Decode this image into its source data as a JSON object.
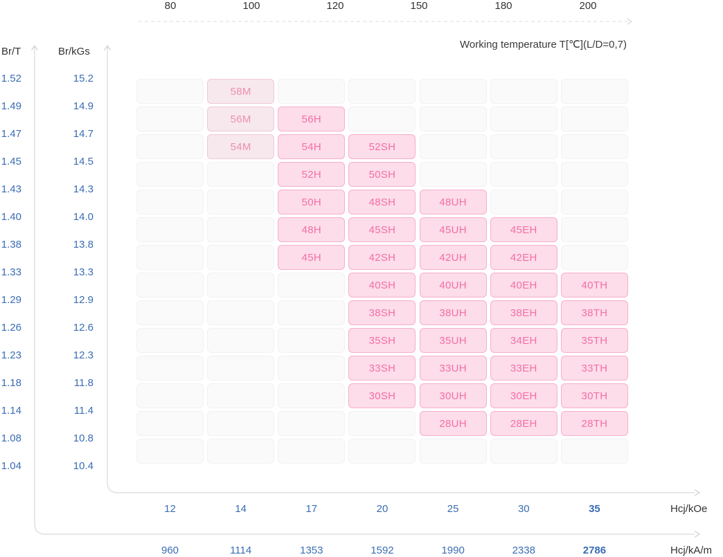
{
  "colors": {
    "accent_blue": "#3a6cb4",
    "text_dark": "#333333",
    "axis_line_gray": "#d9d9d9",
    "empty_cell_bg": "#fafafa",
    "empty_cell_border": "#f1f1f1",
    "grade_cell_bg": "#fcdde9",
    "grade_cell_border": "#f8aecd",
    "grade_cell_text": "#f46ea6",
    "m_grade_cell_bg": "#f7e8ed",
    "m_grade_cell_border": "#efc9d6",
    "m_grade_cell_text": "#ec8fb0"
  },
  "ui": {
    "title": "Working temperature T[℃](L/D=0,7)",
    "temp_labels": [
      "80",
      "100",
      "120",
      "150",
      "180",
      "200"
    ],
    "y_axis": {
      "left_title": "Br/T",
      "right_title": "Br/kGs",
      "br_t": [
        "1.52",
        "1.49",
        "1.47",
        "1.45",
        "1.43",
        "1.40",
        "1.38",
        "1.33",
        "1.29",
        "1.26",
        "1.23",
        "1.18",
        "1.14",
        "1.08",
        "1.04"
      ],
      "br_kgs": [
        "15.2",
        "14.9",
        "14.7",
        "14.5",
        "14.3",
        "14.0",
        "13.8",
        "13.3",
        "12.9",
        "12.6",
        "12.3",
        "11.8",
        "11.4",
        "10.8",
        "10.4"
      ]
    },
    "x_koe": {
      "label": "Hcj/kOe",
      "values": [
        "12",
        "14",
        "17",
        "20",
        "25",
        "30",
        "35"
      ],
      "bold": [
        "35"
      ]
    },
    "x_kam": {
      "label": "Hcj/kA/m",
      "values": [
        "960",
        "1114",
        "1353",
        "1592",
        "1990",
        "2338",
        "2786"
      ],
      "bold": [
        "2786"
      ]
    }
  },
  "chart_data": {
    "type": "heatmap",
    "title": "Working temperature T[℃](L/D=0,7)",
    "top_axis": {
      "label": "Working temperature T[℃](L/D=0,7)",
      "ticks_celsius": [
        80,
        100,
        120,
        150,
        180,
        200
      ]
    },
    "y_axis": {
      "primary_label": "Br/T",
      "primary_ticks": [
        1.52,
        1.49,
        1.47,
        1.45,
        1.43,
        1.4,
        1.38,
        1.33,
        1.29,
        1.26,
        1.23,
        1.18,
        1.14,
        1.08,
        1.04
      ],
      "secondary_label": "Br/kGs",
      "secondary_ticks": [
        15.2,
        14.9,
        14.7,
        14.5,
        14.3,
        14.0,
        13.8,
        13.3,
        12.9,
        12.6,
        12.3,
        11.8,
        11.4,
        10.8,
        10.4
      ]
    },
    "x_axis": {
      "primary_label": "Hcj/kOe",
      "primary_ticks": [
        12,
        14,
        17,
        20,
        25,
        30,
        35
      ],
      "secondary_label": "Hcj/kA/m",
      "secondary_ticks": [
        960,
        1114,
        1353,
        1592,
        1990,
        2338,
        2786
      ]
    },
    "grid_rows": [
      [
        "",
        "58M",
        "",
        "",
        "",
        "",
        ""
      ],
      [
        "",
        "56M",
        "56H",
        "",
        "",
        "",
        ""
      ],
      [
        "",
        "54M",
        "54H",
        "52SH",
        "",
        "",
        ""
      ],
      [
        "",
        "",
        "52H",
        "50SH",
        "",
        "",
        ""
      ],
      [
        "",
        "",
        "50H",
        "48SH",
        "48UH",
        "",
        ""
      ],
      [
        "",
        "",
        "48H",
        "45SH",
        "45UH",
        "45EH",
        ""
      ],
      [
        "",
        "",
        "45H",
        "42SH",
        "42UH",
        "42EH",
        ""
      ],
      [
        "",
        "",
        "",
        "40SH",
        "40UH",
        "40EH",
        "40TH"
      ],
      [
        "",
        "",
        "",
        "38SH",
        "38UH",
        "38EH",
        "38TH"
      ],
      [
        "",
        "",
        "",
        "35SH",
        "35UH",
        "34EH",
        "35TH"
      ],
      [
        "",
        "",
        "",
        "33SH",
        "33UH",
        "33EH",
        "33TH"
      ],
      [
        "",
        "",
        "",
        "30SH",
        "30UH",
        "30EH",
        "30TH"
      ],
      [
        "",
        "",
        "",
        "",
        "28UH",
        "28EH",
        "28TH"
      ],
      [
        "",
        "",
        "",
        "",
        "",
        "",
        ""
      ]
    ]
  }
}
